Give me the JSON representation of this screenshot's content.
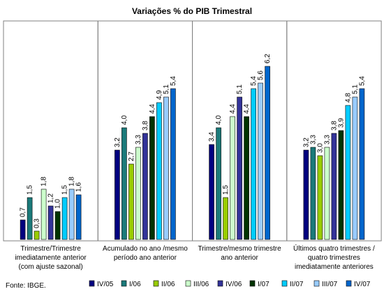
{
  "chart_data": {
    "type": "bar",
    "title": "Variações % do PIB Trimestral",
    "source": "Fonte: IBGE.",
    "categories": [
      [
        "Trimestre/Trimestre",
        "imediatamente anterior",
        "(com ajuste sazonal)"
      ],
      [
        "Acumulado no ano /mesmo",
        "período ano anterior"
      ],
      [
        "Trimestre/mesmo trimestre",
        "ano anterior"
      ],
      [
        "Últimos quatro trimestres /",
        "quatro trimestres",
        "imediatamente anteriores"
      ]
    ],
    "series": [
      {
        "name": "IV/05",
        "color": "#000080",
        "values": [
          0.7,
          3.2,
          3.4,
          3.2
        ],
        "labels": [
          "0,7",
          "3,2",
          "3,4",
          "3,2"
        ]
      },
      {
        "name": "I/06",
        "color": "#1b7a7a",
        "values": [
          1.5,
          4.0,
          4.0,
          3.3
        ],
        "labels": [
          "1,5",
          "4,0",
          "4,0",
          "3,3"
        ]
      },
      {
        "name": "II/06",
        "color": "#99cc00",
        "values": [
          0.3,
          2.7,
          1.5,
          3.0
        ],
        "labels": [
          "0,3",
          "2,7",
          "1,5",
          "3,0"
        ]
      },
      {
        "name": "III/06",
        "color": "#ccffcc",
        "values": [
          1.8,
          3.3,
          4.4,
          3.3
        ],
        "labels": [
          "1,8",
          "3,3",
          "4,4",
          "3,3"
        ]
      },
      {
        "name": "IV/06",
        "color": "#333399",
        "values": [
          1.2,
          3.8,
          5.1,
          3.8
        ],
        "labels": [
          "1,2",
          "3,8",
          "5,1",
          "3,8"
        ]
      },
      {
        "name": "I/07",
        "color": "#003300",
        "values": [
          1.0,
          4.4,
          4.4,
          3.9
        ],
        "labels": [
          "1,0",
          "4,4",
          "4,4",
          "3,9"
        ]
      },
      {
        "name": "II/07",
        "color": "#00ccff",
        "values": [
          1.5,
          4.9,
          5.4,
          4.8
        ],
        "labels": [
          "1,5",
          "4,9",
          "5,4",
          "4,8"
        ]
      },
      {
        "name": "III/07",
        "color": "#99ccff",
        "values": [
          1.8,
          5.1,
          5.6,
          5.1
        ],
        "labels": [
          "1,8",
          "5,1",
          "5,6",
          "5,1"
        ]
      },
      {
        "name": "IV/07",
        "color": "#0066cc",
        "values": [
          1.6,
          5.4,
          6.2,
          5.4
        ],
        "labels": [
          "1,6",
          "5,4",
          "6,2",
          "5,4"
        ]
      }
    ],
    "ylim": [
      0,
      7
    ],
    "grid": false,
    "legend": "bottom"
  }
}
